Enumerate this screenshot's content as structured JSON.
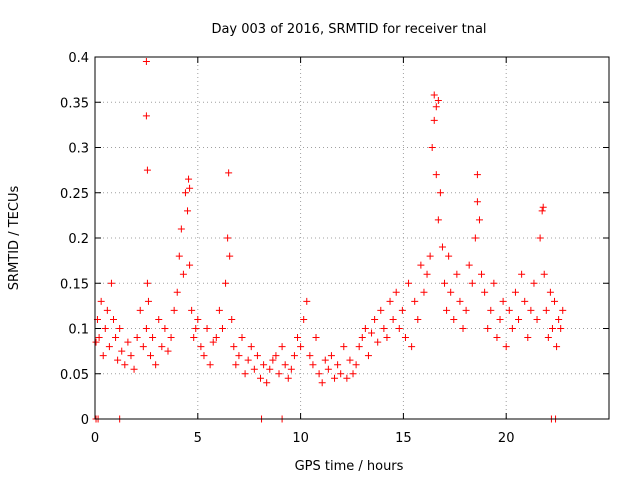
{
  "chart_data": {
    "type": "scatter",
    "title": "Day 003 of 2016, SRMTID for receiver tnal",
    "xlabel": "GPS time / hours",
    "ylabel": "SRMTID / TECUs",
    "xlim": [
      0,
      25
    ],
    "ylim": [
      0,
      0.4
    ],
    "xticks": [
      0,
      5,
      10,
      15,
      20
    ],
    "xtick_labels": [
      "0",
      "5",
      "10",
      "15",
      "20"
    ],
    "yticks": [
      0,
      0.05,
      0.1,
      0.15,
      0.2,
      0.25,
      0.3,
      0.35,
      0.4
    ],
    "ytick_labels": [
      "0",
      "0.05",
      "0.1",
      "0.15",
      "0.2",
      "0.25",
      "0.3",
      "0.35",
      "0.4"
    ],
    "grid": true,
    "marker": "+",
    "series": [
      {
        "name": "SRMTID",
        "color": "#ff0000",
        "x": [
          0.05,
          0.12,
          0.2,
          0.3,
          0.4,
          0.5,
          0.6,
          0.7,
          0.8,
          0.9,
          1.0,
          1.1,
          1.2,
          1.3,
          1.45,
          1.6,
          1.75,
          1.9,
          2.05,
          2.2,
          2.35,
          2.5,
          2.55,
          2.6,
          2.7,
          2.8,
          2.95,
          3.1,
          3.25,
          3.4,
          3.55,
          3.7,
          3.85,
          4.0,
          4.1,
          4.2,
          4.3,
          4.4,
          4.5,
          4.6,
          4.7,
          4.8,
          4.9,
          5.0,
          5.15,
          5.3,
          5.45,
          5.6,
          5.75,
          5.9,
          6.05,
          6.2,
          6.35,
          6.45,
          6.55,
          6.65,
          6.75,
          6.85,
          7.0,
          7.15,
          7.3,
          7.45,
          7.6,
          7.75,
          7.9,
          8.05,
          8.2,
          8.35,
          8.5,
          8.65,
          8.8,
          8.95,
          9.1,
          9.25,
          9.4,
          9.55,
          9.7,
          9.85,
          10.0,
          10.15,
          10.3,
          10.45,
          10.6,
          10.75,
          10.9,
          11.05,
          11.2,
          11.35,
          11.5,
          11.65,
          11.8,
          11.95,
          12.1,
          12.25,
          12.4,
          12.55,
          12.7,
          12.85,
          13.0,
          13.15,
          13.3,
          13.45,
          13.6,
          13.75,
          13.9,
          14.05,
          14.2,
          14.35,
          14.5,
          14.65,
          14.8,
          14.95,
          15.1,
          15.25,
          15.4,
          15.55,
          15.7,
          15.85,
          16.0,
          16.15,
          16.3,
          16.4,
          16.5,
          16.6,
          16.7,
          16.8,
          16.9,
          17.0,
          17.1,
          17.2,
          17.3,
          17.45,
          17.6,
          17.75,
          17.9,
          18.05,
          18.2,
          18.35,
          18.5,
          18.6,
          18.7,
          18.8,
          18.95,
          19.1,
          19.25,
          19.4,
          19.55,
          19.7,
          19.85,
          20.0,
          20.15,
          20.3,
          20.45,
          20.6,
          20.75,
          20.9,
          21.05,
          21.2,
          21.35,
          21.5,
          21.65,
          21.75,
          21.85,
          21.95,
          22.05,
          22.15,
          22.25,
          22.35,
          22.45,
          22.55,
          22.65,
          22.75,
          0.05,
          0.15,
          1.2,
          8.1,
          9.1,
          22.2,
          22.4,
          2.5,
          2.5,
          2.55,
          4.55,
          4.6,
          6.5,
          16.5,
          16.6,
          16.7,
          18.6,
          21.8
        ],
        "y": [
          0.085,
          0.11,
          0.09,
          0.13,
          0.07,
          0.1,
          0.12,
          0.08,
          0.15,
          0.11,
          0.09,
          0.065,
          0.1,
          0.075,
          0.06,
          0.085,
          0.07,
          0.055,
          0.09,
          0.12,
          0.08,
          0.1,
          0.15,
          0.13,
          0.07,
          0.09,
          0.06,
          0.11,
          0.08,
          0.1,
          0.075,
          0.09,
          0.12,
          0.14,
          0.18,
          0.21,
          0.16,
          0.25,
          0.23,
          0.17,
          0.12,
          0.09,
          0.1,
          0.11,
          0.08,
          0.07,
          0.1,
          0.06,
          0.085,
          0.09,
          0.12,
          0.1,
          0.15,
          0.2,
          0.18,
          0.11,
          0.08,
          0.06,
          0.07,
          0.09,
          0.05,
          0.065,
          0.08,
          0.055,
          0.07,
          0.045,
          0.06,
          0.04,
          0.055,
          0.065,
          0.07,
          0.05,
          0.08,
          0.06,
          0.045,
          0.055,
          0.07,
          0.09,
          0.08,
          0.11,
          0.13,
          0.07,
          0.06,
          0.09,
          0.05,
          0.04,
          0.065,
          0.055,
          0.07,
          0.045,
          0.06,
          0.05,
          0.08,
          0.045,
          0.065,
          0.05,
          0.06,
          0.08,
          0.09,
          0.1,
          0.07,
          0.095,
          0.11,
          0.085,
          0.12,
          0.1,
          0.09,
          0.13,
          0.11,
          0.14,
          0.1,
          0.12,
          0.09,
          0.15,
          0.08,
          0.13,
          0.11,
          0.17,
          0.14,
          0.16,
          0.18,
          0.3,
          0.33,
          0.27,
          0.22,
          0.25,
          0.19,
          0.15,
          0.12,
          0.18,
          0.14,
          0.11,
          0.16,
          0.13,
          0.1,
          0.12,
          0.17,
          0.15,
          0.2,
          0.24,
          0.22,
          0.16,
          0.14,
          0.1,
          0.12,
          0.15,
          0.09,
          0.11,
          0.13,
          0.08,
          0.12,
          0.1,
          0.14,
          0.11,
          0.16,
          0.13,
          0.09,
          0.12,
          0.15,
          0.11,
          0.2,
          0.23,
          0.16,
          0.12,
          0.09,
          0.14,
          0.1,
          0.13,
          0.08,
          0.11,
          0.1,
          0.12,
          0.0,
          0.0,
          0.0,
          0.0,
          0.0,
          0.0,
          0.0,
          0.395,
          0.335,
          0.275,
          0.265,
          0.255,
          0.272,
          0.358,
          0.345,
          0.352,
          0.27,
          0.234
        ]
      }
    ]
  }
}
